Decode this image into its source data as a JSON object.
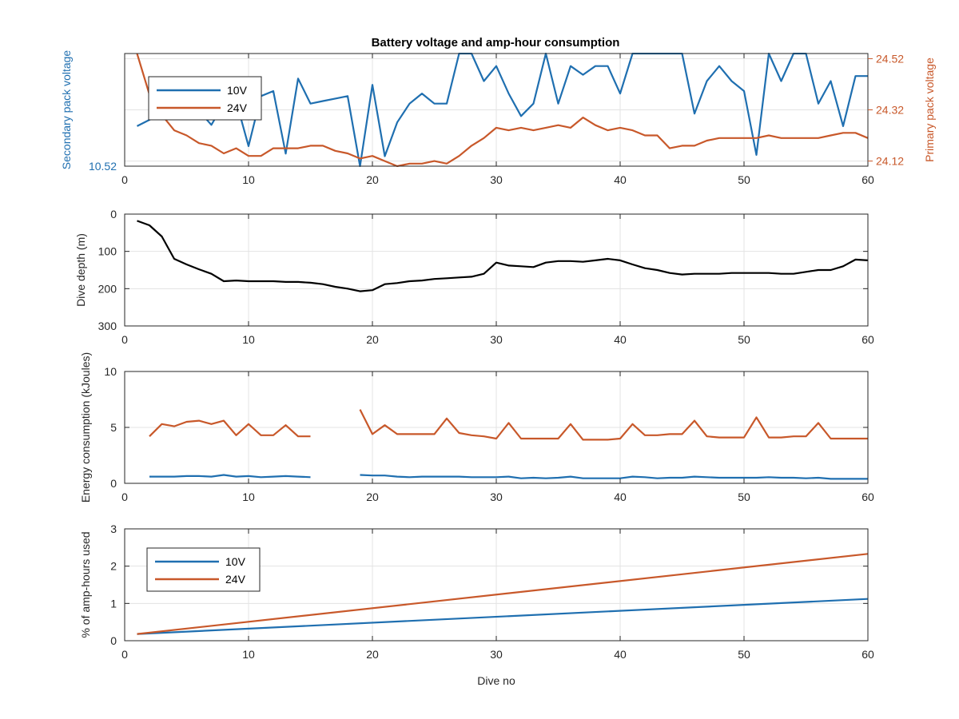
{
  "figure": {
    "title": "Battery voltage and amp-hour consumption"
  },
  "colors": {
    "blue": "#1f6fb0",
    "orange": "#c8582a",
    "black": "#000000",
    "axis": "#262626",
    "grid": "#e3e3e3"
  },
  "chart_data": [
    {
      "type": "line",
      "title": "Battery voltage and amp-hour consumption",
      "xlabel": "",
      "ylabel": "Secondary pack voltage",
      "ylabel_right": "Primary pack voltage",
      "xlim": [
        0,
        60
      ],
      "xticks": [
        0,
        10,
        20,
        30,
        40,
        50,
        60
      ],
      "ylim": [
        10.52,
        10.61
      ],
      "yticks_left": [
        10.52
      ],
      "ylim_right": [
        24.1,
        24.54
      ],
      "yticks_right": [
        24.12,
        24.32,
        24.52
      ],
      "grid": true,
      "legend": "top-left",
      "series": [
        {
          "name": "10V",
          "axis": "left",
          "x": [
            1,
            2,
            3,
            4,
            5,
            6,
            7,
            8,
            9,
            10,
            11,
            12,
            13,
            14,
            15,
            16,
            17,
            18,
            19,
            20,
            21,
            22,
            23,
            24,
            25,
            26,
            27,
            28,
            29,
            30,
            31,
            32,
            33,
            34,
            35,
            36,
            37,
            38,
            39,
            40,
            41,
            42,
            43,
            44,
            45,
            46,
            47,
            48,
            49,
            50,
            51,
            52,
            53,
            54,
            55,
            56,
            57,
            58,
            59,
            60
          ],
          "y": [
            10.552,
            10.557,
            10.562,
            10.568,
            10.565,
            10.564,
            10.553,
            10.57,
            10.572,
            10.536,
            10.576,
            10.58,
            10.53,
            10.59,
            10.57,
            10.572,
            10.574,
            10.576,
            10.52,
            10.585,
            10.528,
            10.555,
            10.57,
            10.578,
            10.57,
            10.57,
            10.61,
            10.61,
            10.588,
            10.6,
            10.578,
            10.56,
            10.57,
            10.61,
            10.57,
            10.6,
            10.593,
            10.6,
            10.6,
            10.578,
            10.61,
            10.61,
            10.61,
            10.61,
            10.61,
            10.562,
            10.588,
            10.6,
            10.588,
            10.58,
            10.529,
            10.61,
            10.588,
            10.61,
            10.61,
            10.57,
            10.588,
            10.552,
            10.592,
            10.592
          ]
        },
        {
          "name": "24V",
          "axis": "right",
          "x": [
            1,
            2,
            3,
            4,
            5,
            6,
            7,
            8,
            9,
            10,
            11,
            12,
            13,
            14,
            15,
            16,
            17,
            18,
            19,
            20,
            21,
            22,
            23,
            24,
            25,
            26,
            27,
            28,
            29,
            30,
            31,
            32,
            33,
            34,
            35,
            36,
            37,
            38,
            39,
            40,
            41,
            42,
            43,
            44,
            45,
            46,
            47,
            48,
            49,
            50,
            51,
            52,
            53,
            54,
            55,
            56,
            57,
            58,
            59,
            60
          ],
          "y": [
            24.54,
            24.38,
            24.3,
            24.24,
            24.22,
            24.19,
            24.18,
            24.15,
            24.17,
            24.14,
            24.14,
            24.17,
            24.17,
            24.17,
            24.18,
            24.18,
            24.16,
            24.15,
            24.13,
            24.14,
            24.12,
            24.1,
            24.11,
            24.11,
            24.12,
            24.11,
            24.14,
            24.18,
            24.21,
            24.25,
            24.24,
            24.25,
            24.24,
            24.25,
            24.26,
            24.25,
            24.29,
            24.26,
            24.24,
            24.25,
            24.24,
            24.22,
            24.22,
            24.17,
            24.18,
            24.18,
            24.2,
            24.21,
            24.21,
            24.21,
            24.21,
            24.22,
            24.21,
            24.21,
            24.21,
            24.21,
            24.22,
            24.23,
            24.23,
            24.21
          ]
        }
      ]
    },
    {
      "type": "line",
      "xlabel": "",
      "ylabel": "Dive depth (m)",
      "xlim": [
        0,
        60
      ],
      "xticks": [
        0,
        10,
        20,
        30,
        40,
        50,
        60
      ],
      "ylim": [
        0,
        300
      ],
      "y_reversed": true,
      "yticks": [
        0,
        100,
        200,
        300
      ],
      "grid": true,
      "series": [
        {
          "name": "",
          "x": [
            1,
            2,
            3,
            4,
            5,
            6,
            7,
            8,
            9,
            10,
            11,
            12,
            13,
            14,
            15,
            16,
            17,
            18,
            19,
            20,
            21,
            22,
            23,
            24,
            25,
            26,
            27,
            28,
            29,
            30,
            31,
            32,
            33,
            34,
            35,
            36,
            37,
            38,
            39,
            40,
            41,
            42,
            43,
            44,
            45,
            46,
            47,
            48,
            49,
            50,
            51,
            52,
            53,
            54,
            55,
            56,
            57,
            58,
            59,
            60
          ],
          "y": [
            18,
            30,
            60,
            120,
            135,
            148,
            160,
            180,
            178,
            180,
            180,
            180,
            182,
            182,
            184,
            188,
            195,
            200,
            207,
            204,
            188,
            185,
            180,
            178,
            174,
            172,
            170,
            168,
            160,
            130,
            138,
            140,
            142,
            130,
            126,
            126,
            128,
            124,
            120,
            124,
            135,
            145,
            150,
            158,
            162,
            160,
            160,
            160,
            158,
            158,
            158,
            158,
            160,
            160,
            155,
            150,
            150,
            140,
            122,
            124
          ]
        }
      ]
    },
    {
      "type": "line",
      "xlabel": "",
      "ylabel": "Energy consumption (kJoules)",
      "xlim": [
        0,
        60
      ],
      "xticks": [
        0,
        10,
        20,
        30,
        40,
        50,
        60
      ],
      "ylim": [
        0,
        10
      ],
      "yticks": [
        0,
        5,
        10
      ],
      "grid": true,
      "series": [
        {
          "name": "10V",
          "x": [
            2,
            3,
            4,
            5,
            6,
            7,
            8,
            9,
            10,
            11,
            12,
            13,
            14,
            15,
            null,
            19,
            20,
            21,
            22,
            23,
            24,
            25,
            26,
            27,
            28,
            29,
            30,
            31,
            32,
            33,
            34,
            35,
            36,
            37,
            38,
            39,
            40,
            41,
            42,
            43,
            44,
            45,
            46,
            47,
            48,
            49,
            50,
            51,
            52,
            53,
            54,
            55,
            56,
            57,
            58,
            59,
            60
          ],
          "y": [
            0.6,
            0.6,
            0.6,
            0.65,
            0.65,
            0.6,
            0.75,
            0.6,
            0.65,
            0.55,
            0.6,
            0.65,
            0.6,
            0.55,
            null,
            0.75,
            0.7,
            0.7,
            0.6,
            0.55,
            0.6,
            0.6,
            0.6,
            0.6,
            0.55,
            0.55,
            0.55,
            0.6,
            0.45,
            0.5,
            0.45,
            0.5,
            0.6,
            0.45,
            0.45,
            0.45,
            0.45,
            0.6,
            0.55,
            0.45,
            0.5,
            0.5,
            0.6,
            0.55,
            0.5,
            0.5,
            0.5,
            0.5,
            0.55,
            0.5,
            0.5,
            0.45,
            0.5,
            0.4,
            0.4,
            0.4,
            0.4
          ]
        },
        {
          "name": "24V",
          "x": [
            2,
            3,
            4,
            5,
            6,
            7,
            8,
            9,
            10,
            11,
            12,
            13,
            14,
            15,
            null,
            19,
            20,
            21,
            22,
            23,
            24,
            25,
            26,
            27,
            28,
            29,
            30,
            31,
            32,
            33,
            34,
            35,
            36,
            37,
            38,
            39,
            40,
            41,
            42,
            43,
            44,
            45,
            46,
            47,
            48,
            49,
            50,
            51,
            52,
            53,
            54,
            55,
            56,
            57,
            58,
            59,
            60
          ],
          "y": [
            4.2,
            5.3,
            5.1,
            5.5,
            5.6,
            5.3,
            5.6,
            4.3,
            5.3,
            4.3,
            4.3,
            5.2,
            4.2,
            4.2,
            null,
            6.6,
            4.4,
            5.2,
            4.4,
            4.4,
            4.4,
            4.4,
            5.8,
            4.5,
            4.3,
            4.2,
            4.0,
            5.4,
            4.0,
            4.0,
            4.0,
            4.0,
            5.3,
            3.9,
            3.9,
            3.9,
            4.0,
            5.3,
            4.3,
            4.3,
            4.4,
            4.4,
            5.6,
            4.2,
            4.1,
            4.1,
            4.1,
            5.9,
            4.1,
            4.1,
            4.2,
            4.2,
            5.4,
            4.0,
            4.0,
            4.0,
            4.0
          ]
        }
      ]
    },
    {
      "type": "line",
      "xlabel": "Dive no",
      "ylabel": "% of amp-hours used",
      "xlim": [
        0,
        60
      ],
      "xticks": [
        0,
        10,
        20,
        30,
        40,
        50,
        60
      ],
      "ylim": [
        0,
        3
      ],
      "yticks": [
        0,
        1,
        2,
        3
      ],
      "grid": true,
      "legend": "top-left",
      "series": [
        {
          "name": "10V",
          "x": [
            1,
            60
          ],
          "y": [
            0.18,
            1.12
          ]
        },
        {
          "name": "24V",
          "x": [
            1,
            60
          ],
          "y": [
            0.18,
            2.33
          ]
        }
      ]
    }
  ]
}
